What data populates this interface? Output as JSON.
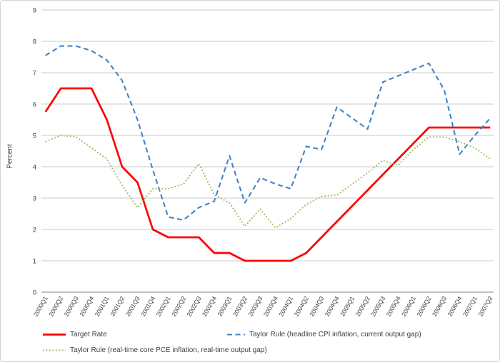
{
  "chart_data": {
    "type": "line",
    "title": "",
    "xlabel": "",
    "ylabel": "Percent",
    "ylim": [
      0,
      9
    ],
    "ytick_step": 1,
    "grid": true,
    "legend_position": "bottom",
    "categories": [
      "2000Q1",
      "2000Q2",
      "2000Q3",
      "2000Q4",
      "2001Q1",
      "2001Q2",
      "2001Q3",
      "2001Q4",
      "2002Q1",
      "2002Q2",
      "2002Q3",
      "2002Q4",
      "2003Q1",
      "2003Q2",
      "2003Q3",
      "2003Q4",
      "2004Q1",
      "2004Q2",
      "2004Q3",
      "2004Q4",
      "2005Q1",
      "2005Q2",
      "2005Q3",
      "2005Q4",
      "2006Q1",
      "2006Q2",
      "2006Q3",
      "2006Q4",
      "2007Q1",
      "2007Q2"
    ],
    "series": [
      {
        "name": "Target Rate",
        "color": "#ff0000",
        "style": "solid",
        "values": [
          5.75,
          6.5,
          6.5,
          6.5,
          5.5,
          4.0,
          3.5,
          2.0,
          1.75,
          1.75,
          1.75,
          1.25,
          1.25,
          1.0,
          1.0,
          1.0,
          1.0,
          1.25,
          1.75,
          2.25,
          2.75,
          3.25,
          3.75,
          4.25,
          4.75,
          5.25,
          5.25,
          5.25,
          5.25,
          5.25
        ]
      },
      {
        "name": "Taylor Rule (headline CPI inflation, current output gap)",
        "color": "#4384c6",
        "style": "dashed",
        "values": [
          7.55,
          7.85,
          7.85,
          7.7,
          7.4,
          6.75,
          5.5,
          3.9,
          2.4,
          2.3,
          2.7,
          2.9,
          4.35,
          2.85,
          3.65,
          3.45,
          3.3,
          4.65,
          4.55,
          5.9,
          5.55,
          5.2,
          6.7,
          6.9,
          7.1,
          7.3,
          6.45,
          4.4,
          5.0,
          5.55
        ]
      },
      {
        "name": "Taylor Rule (real-time core PCE inflation, real-time output gap)",
        "color": "#9bbb59",
        "style": "dotted",
        "values": [
          4.8,
          5.0,
          4.95,
          4.6,
          4.25,
          3.4,
          2.7,
          3.3,
          3.3,
          3.45,
          4.1,
          3.1,
          2.85,
          2.1,
          2.65,
          2.05,
          2.35,
          2.8,
          3.05,
          3.1,
          3.45,
          3.8,
          4.2,
          4.05,
          4.55,
          4.95,
          4.95,
          4.8,
          4.6,
          4.25
        ]
      }
    ],
    "axis_colors": {
      "gridline": "#c9c9c9",
      "axis_line": "#9b9b9b",
      "tick_label": "#3f3f3f"
    }
  }
}
